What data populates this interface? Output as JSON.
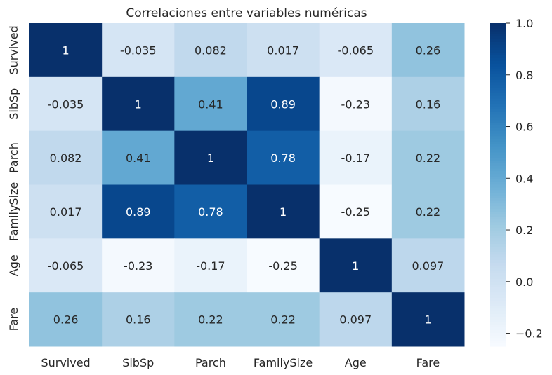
{
  "chart_data": {
    "type": "heatmap",
    "title": "Correlaciones entre variables numéricas",
    "xlabel": "",
    "ylabel": "",
    "x_categories": [
      "Survived",
      "SibSp",
      "Parch",
      "FamilySize",
      "Age",
      "Fare"
    ],
    "y_categories": [
      "Survived",
      "SibSp",
      "Parch",
      "FamilySize",
      "Age",
      "Fare"
    ],
    "values": [
      [
        1,
        -0.035,
        0.082,
        0.017,
        -0.065,
        0.26
      ],
      [
        -0.035,
        1,
        0.41,
        0.89,
        -0.23,
        0.16
      ],
      [
        0.082,
        0.41,
        1,
        0.78,
        -0.17,
        0.22
      ],
      [
        0.017,
        0.89,
        0.78,
        1,
        -0.25,
        0.22
      ],
      [
        -0.065,
        -0.23,
        -0.17,
        -0.25,
        1,
        0.097
      ],
      [
        0.26,
        0.16,
        0.22,
        0.22,
        0.097,
        1
      ]
    ],
    "labels": [
      [
        "1",
        "-0.035",
        "0.082",
        "0.017",
        "-0.065",
        "0.26"
      ],
      [
        "-0.035",
        "1",
        "0.41",
        "0.89",
        "-0.23",
        "0.16"
      ],
      [
        "0.082",
        "0.41",
        "1",
        "0.78",
        "-0.17",
        "0.22"
      ],
      [
        "0.017",
        "0.89",
        "0.78",
        "1",
        "-0.25",
        "0.22"
      ],
      [
        "-0.065",
        "-0.23",
        "-0.17",
        "-0.25",
        "1",
        "0.097"
      ],
      [
        "0.26",
        "0.16",
        "0.22",
        "0.22",
        "0.097",
        "1"
      ]
    ],
    "colormap": "Blues",
    "colormap_stops": [
      "#f7fbff",
      "#deebf7",
      "#c6dbef",
      "#9ecae1",
      "#6baed6",
      "#4292c6",
      "#2171b5",
      "#08519c",
      "#08306b"
    ],
    "vmin": -0.25,
    "vmax": 1,
    "colorbar_ticks": [
      1.0,
      0.8,
      0.6,
      0.4,
      0.2,
      0.0,
      -0.2
    ],
    "colorbar_tick_labels": [
      "1.0",
      "0.8",
      "0.6",
      "0.4",
      "0.2",
      "0.0",
      "−0.2"
    ],
    "text_color_dark": "#262626",
    "text_color_light": "#ffffff"
  }
}
